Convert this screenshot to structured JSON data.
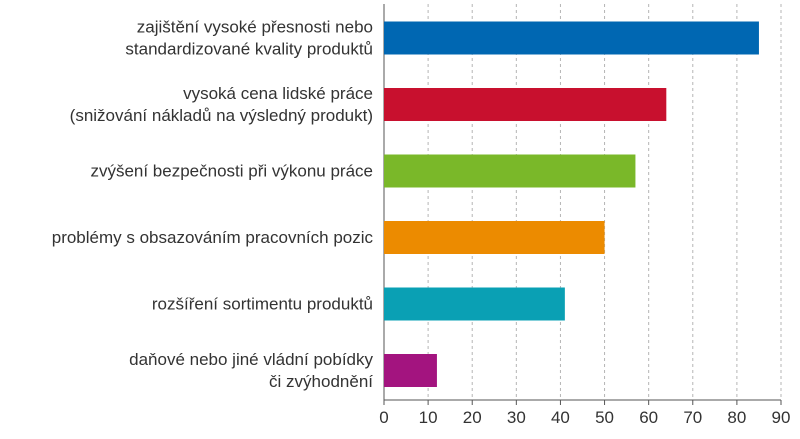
{
  "chart_data": {
    "type": "bar",
    "orientation": "horizontal",
    "categories": [
      [
        "zajištění vysoké přesnosti nebo",
        "standardizované kvality produktů"
      ],
      [
        "vysoká cena lidské práce",
        "(snižování nákladů na výsledný produkt)"
      ],
      [
        "zvýšení bezpečnosti při výkonu práce"
      ],
      [
        "problémy s obsazováním pracovních pozic"
      ],
      [
        "rozšíření sortimentu produktů"
      ],
      [
        "daňové nebo jiné vládní pobídky",
        "či zvýhodnění"
      ]
    ],
    "values": [
      85,
      64,
      57,
      50,
      41,
      12
    ],
    "colors": [
      "#0067b2",
      "#c8102e",
      "#7ab829",
      "#ec8b00",
      "#0aa0b4",
      "#a3147f"
    ],
    "xlim": [
      0,
      90
    ],
    "xticks": [
      "0",
      "10",
      "20",
      "30",
      "40",
      "50",
      "60",
      "70",
      "80",
      "90"
    ],
    "grid": "vertical dashed",
    "legend": "none"
  }
}
